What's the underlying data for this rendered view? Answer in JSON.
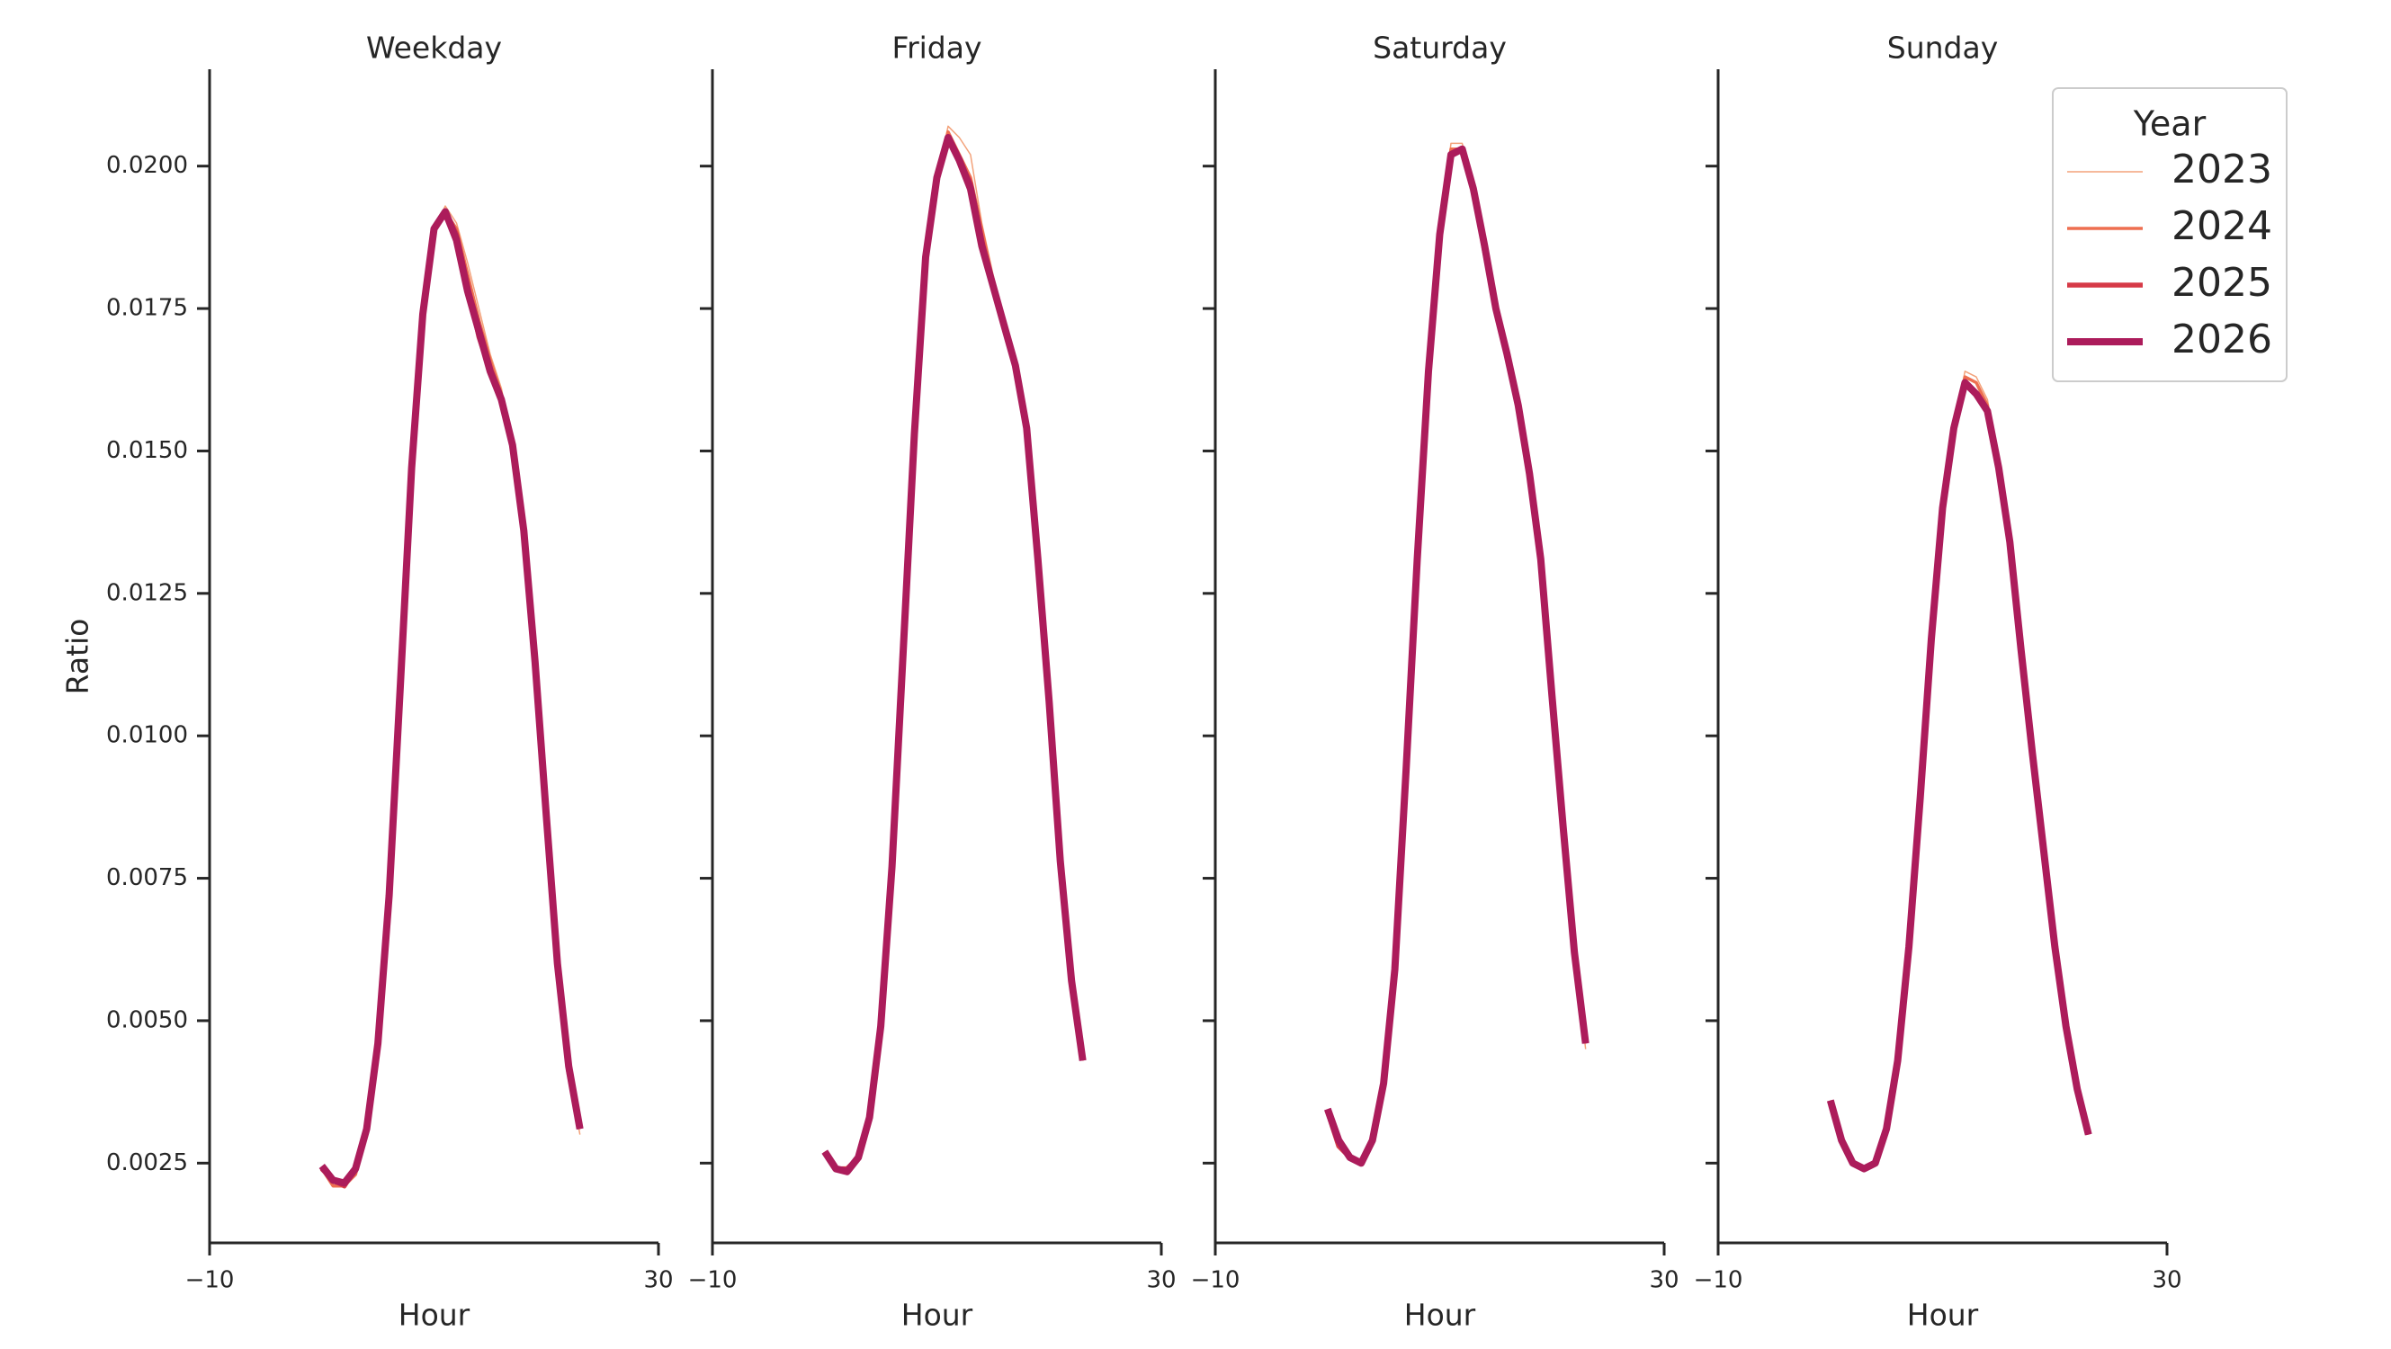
{
  "chart_data": {
    "type": "line",
    "ylabel": "Ratio",
    "xlabel": "Hour",
    "xlim": [
      -10,
      30
    ],
    "xticks": [
      -10,
      30
    ],
    "xtick_labels": [
      "−10",
      "30"
    ],
    "ylim": [
      0.0011,
      0.0217
    ],
    "yticks": [
      0.0025,
      0.005,
      0.0075,
      0.01,
      0.0125,
      0.015,
      0.0175,
      0.02
    ],
    "ytick_labels": [
      "0.0025",
      "0.0050",
      "0.0075",
      "0.0100",
      "0.0125",
      "0.0150",
      "0.0175",
      "0.0200"
    ],
    "grid": false,
    "x": [
      0,
      1,
      2,
      3,
      4,
      5,
      6,
      7,
      8,
      9,
      10,
      11,
      12,
      13,
      14,
      15,
      16,
      17,
      18,
      19,
      20,
      21,
      22,
      23
    ],
    "legend": {
      "title": "Year",
      "position": "top-right",
      "entries": [
        "2023",
        "2024",
        "2025",
        "2026"
      ]
    },
    "series_styles": {
      "2023": {
        "color": "#f3a27a",
        "width": 1.5
      },
      "2024": {
        "color": "#ee6f50",
        "width": 3.5
      },
      "2025": {
        "color": "#d63a47",
        "width": 5.5
      },
      "2026": {
        "color": "#ac1c5b",
        "width": 8
      }
    },
    "panels": [
      {
        "title": "Weekday",
        "series": [
          {
            "name": "2023",
            "values": [
              0.0024,
              0.0021,
              0.0021,
              0.0023,
              0.003,
              0.0045,
              0.0072,
              0.0108,
              0.0146,
              0.0174,
              0.0189,
              0.0193,
              0.019,
              0.0183,
              0.0175,
              0.0167,
              0.0161,
              0.0151,
              0.0135,
              0.0112,
              0.0085,
              0.0059,
              0.0041,
              0.003
            ]
          },
          {
            "name": "2024",
            "values": [
              0.0024,
              0.0021,
              0.0021,
              0.0023,
              0.003,
              0.0046,
              0.0072,
              0.0109,
              0.0147,
              0.0175,
              0.0189,
              0.0192,
              0.0189,
              0.0181,
              0.0173,
              0.0166,
              0.016,
              0.0151,
              0.0136,
              0.0113,
              0.0086,
              0.006,
              0.0042,
              0.0031
            ]
          },
          {
            "name": "2025",
            "values": [
              0.0024,
              0.0022,
              0.0021,
              0.0024,
              0.0031,
              0.0046,
              0.0072,
              0.0109,
              0.0147,
              0.0174,
              0.0189,
              0.0192,
              0.0188,
              0.0179,
              0.017,
              0.0164,
              0.0159,
              0.0151,
              0.0136,
              0.0113,
              0.0086,
              0.006,
              0.0041,
              0.0031
            ]
          },
          {
            "name": "2026",
            "values": [
              0.00245,
              0.0022,
              0.00215,
              0.0024,
              0.0031,
              0.0046,
              0.0072,
              0.0109,
              0.0147,
              0.0174,
              0.0189,
              0.0192,
              0.0187,
              0.0178,
              0.0171,
              0.0164,
              0.0159,
              0.0151,
              0.0136,
              0.0113,
              0.0086,
              0.006,
              0.0042,
              0.0031
            ]
          }
        ]
      },
      {
        "title": "Friday",
        "series": [
          {
            "name": "2023",
            "values": [
              0.0027,
              0.0024,
              0.0024,
              0.0026,
              0.0033,
              0.0049,
              0.0077,
              0.0115,
              0.0153,
              0.0184,
              0.0198,
              0.0207,
              0.0205,
              0.0202,
              0.019,
              0.0181,
              0.0173,
              0.0165,
              0.0154,
              0.0131,
              0.0106,
              0.0078,
              0.0057,
              0.0043
            ]
          },
          {
            "name": "2024",
            "values": [
              0.0027,
              0.0024,
              0.0024,
              0.0026,
              0.0033,
              0.0049,
              0.0077,
              0.0115,
              0.0153,
              0.0184,
              0.0198,
              0.0206,
              0.0202,
              0.0198,
              0.0189,
              0.018,
              0.0172,
              0.0165,
              0.0154,
              0.0131,
              0.0106,
              0.0078,
              0.0057,
              0.0043
            ]
          },
          {
            "name": "2025",
            "values": [
              0.0027,
              0.0024,
              0.0024,
              0.0026,
              0.0033,
              0.0049,
              0.0077,
              0.0115,
              0.0153,
              0.0184,
              0.0198,
              0.0205,
              0.0201,
              0.0197,
              0.0187,
              0.0179,
              0.0172,
              0.0165,
              0.0154,
              0.0131,
              0.0106,
              0.0078,
              0.0057,
              0.0043
            ]
          },
          {
            "name": "2026",
            "values": [
              0.0027,
              0.0024,
              0.00235,
              0.0026,
              0.0033,
              0.0049,
              0.0077,
              0.0115,
              0.0153,
              0.0184,
              0.0198,
              0.0205,
              0.0201,
              0.0196,
              0.0186,
              0.0179,
              0.0172,
              0.0165,
              0.0154,
              0.0131,
              0.0106,
              0.0078,
              0.0057,
              0.0043
            ]
          }
        ]
      },
      {
        "title": "Saturday",
        "series": [
          {
            "name": "2023",
            "values": [
              0.0034,
              0.0028,
              0.0026,
              0.0025,
              0.0029,
              0.0039,
              0.0059,
              0.0094,
              0.0131,
              0.0164,
              0.0188,
              0.0204,
              0.0204,
              0.0196,
              0.0185,
              0.0175,
              0.0167,
              0.0158,
              0.0146,
              0.0131,
              0.0107,
              0.0084,
              0.0062,
              0.0045
            ]
          },
          {
            "name": "2024",
            "values": [
              0.0034,
              0.0028,
              0.0026,
              0.0025,
              0.0029,
              0.0039,
              0.0059,
              0.0094,
              0.0131,
              0.0164,
              0.0188,
              0.0203,
              0.0203,
              0.0196,
              0.0185,
              0.0175,
              0.0167,
              0.0158,
              0.0146,
              0.0131,
              0.0107,
              0.0084,
              0.0062,
              0.0046
            ]
          },
          {
            "name": "2025",
            "values": [
              0.0034,
              0.0028,
              0.0026,
              0.0025,
              0.0029,
              0.0039,
              0.0059,
              0.0094,
              0.0131,
              0.0164,
              0.0188,
              0.0202,
              0.0203,
              0.0196,
              0.0185,
              0.0175,
              0.0167,
              0.0158,
              0.0146,
              0.0131,
              0.0107,
              0.0084,
              0.0062,
              0.0046
            ]
          },
          {
            "name": "2026",
            "values": [
              0.00345,
              0.0029,
              0.0026,
              0.0025,
              0.0029,
              0.0039,
              0.0059,
              0.0094,
              0.0131,
              0.0164,
              0.0188,
              0.0202,
              0.0203,
              0.0196,
              0.0186,
              0.0175,
              0.0167,
              0.0158,
              0.0146,
              0.0131,
              0.0107,
              0.0084,
              0.0062,
              0.0046
            ]
          }
        ]
      },
      {
        "title": "Sunday",
        "series": [
          {
            "name": "2023",
            "values": [
              0.0036,
              0.0029,
              0.0025,
              0.0024,
              0.0025,
              0.0031,
              0.0043,
              0.0063,
              0.0089,
              0.0117,
              0.014,
              0.0154,
              0.0164,
              0.0163,
              0.0159,
              0.0147,
              0.0134,
              0.0115,
              0.0097,
              0.008,
              0.0063,
              0.0049,
              0.0038,
              0.003
            ]
          },
          {
            "name": "2024",
            "values": [
              0.0036,
              0.0029,
              0.0025,
              0.0024,
              0.0025,
              0.0031,
              0.0043,
              0.0063,
              0.0089,
              0.0117,
              0.014,
              0.0154,
              0.0163,
              0.0162,
              0.0158,
              0.0147,
              0.0134,
              0.0115,
              0.0097,
              0.008,
              0.0063,
              0.0049,
              0.0038,
              0.003
            ]
          },
          {
            "name": "2025",
            "values": [
              0.0036,
              0.0029,
              0.0025,
              0.0024,
              0.0025,
              0.0031,
              0.0043,
              0.0063,
              0.0089,
              0.0117,
              0.014,
              0.0154,
              0.0162,
              0.016,
              0.0157,
              0.0147,
              0.0134,
              0.0115,
              0.0097,
              0.008,
              0.0063,
              0.0049,
              0.0038,
              0.003
            ]
          },
          {
            "name": "2026",
            "values": [
              0.0036,
              0.0029,
              0.0025,
              0.0024,
              0.0025,
              0.0031,
              0.0043,
              0.0063,
              0.0089,
              0.0117,
              0.014,
              0.0154,
              0.0162,
              0.016,
              0.0157,
              0.0147,
              0.0134,
              0.0115,
              0.0097,
              0.008,
              0.0063,
              0.0049,
              0.0038,
              0.003
            ]
          }
        ]
      }
    ]
  }
}
